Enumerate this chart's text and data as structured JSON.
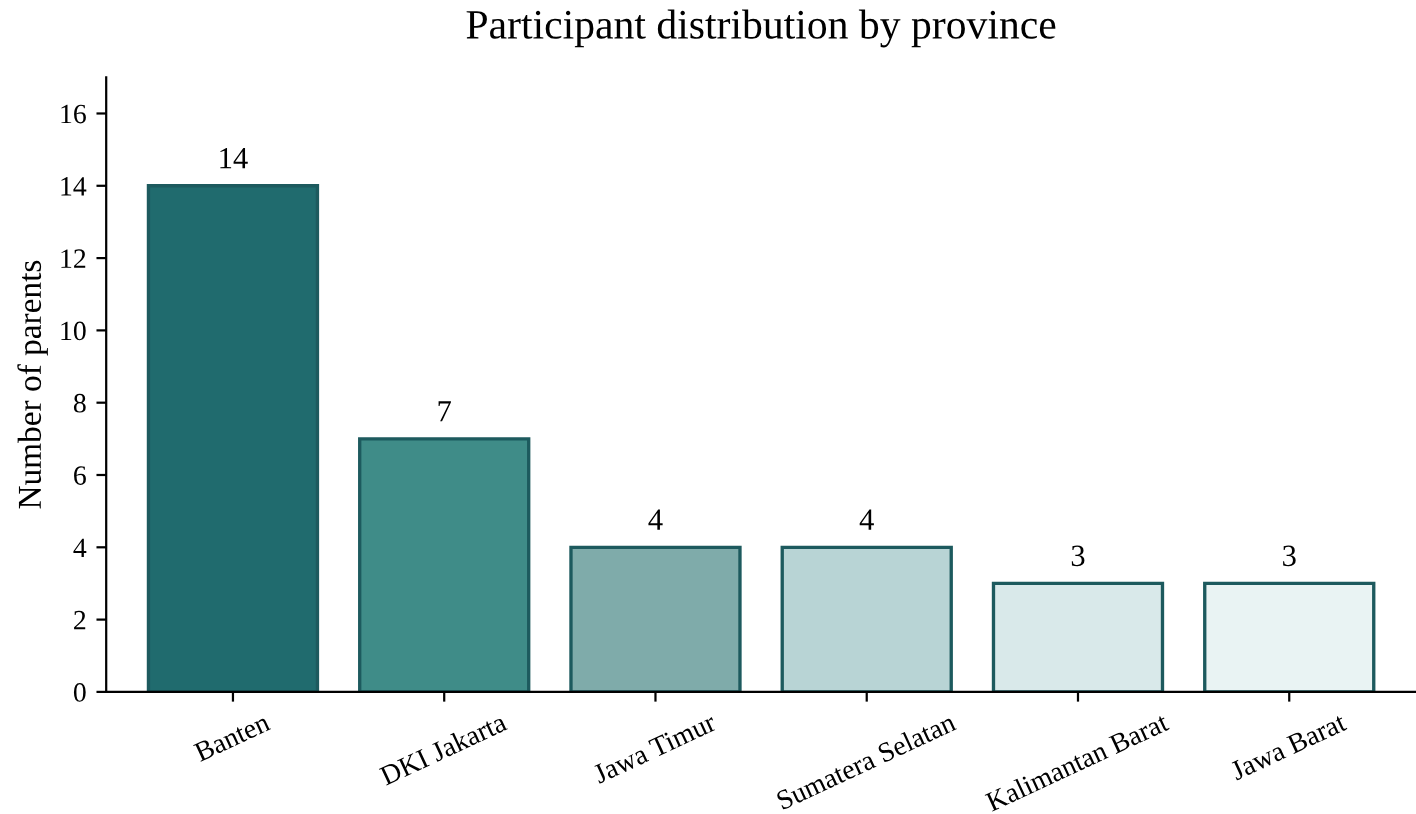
{
  "chart_data": {
    "type": "bar",
    "title": "Participant distribution by province",
    "ylabel": "Number of parents",
    "categories": [
      "Banten",
      "DKI Jakarta",
      "Jawa Timur",
      "Sumatera Selatan",
      "Kalimantan Barat",
      "Jawa Barat"
    ],
    "values": [
      14,
      7,
      4,
      4,
      3,
      3
    ],
    "colors": [
      "#206b6e",
      "#3f8c88",
      "#7fabaa",
      "#b8d4d5",
      "#d9e9ea",
      "#e9f3f3"
    ],
    "ylim": [
      0,
      17
    ],
    "yticks": [
      0,
      2,
      4,
      6,
      8,
      10,
      12,
      14,
      16
    ],
    "data_labels": true,
    "grid": false,
    "legend": false
  }
}
